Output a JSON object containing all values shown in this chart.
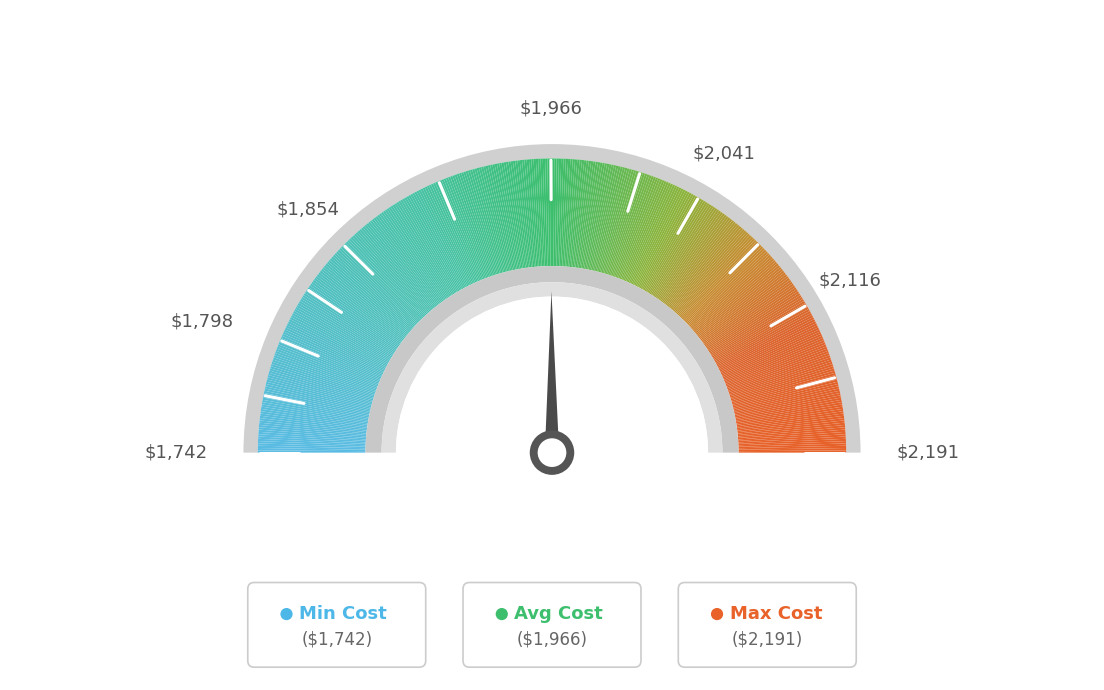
{
  "min_value": 1742,
  "max_value": 2191,
  "avg_value": 1966,
  "label_values": [
    1742,
    1798,
    1854,
    1966,
    2041,
    2116,
    2191
  ],
  "tick_values": [
    1742,
    1770,
    1798,
    1826,
    1854,
    1910,
    1966,
    2010,
    2041,
    2078,
    2116,
    2154,
    2191
  ],
  "min_label": "Min Cost",
  "avg_label": "Avg Cost",
  "max_label": "Max Cost",
  "min_display": "($1,742)",
  "avg_display": "($1,966)",
  "max_display": "($2,191)",
  "min_color": "#4db8e8",
  "avg_color": "#3dbf6e",
  "max_color": "#e8622a",
  "background_color": "#ffffff",
  "needle_color": "#4a4a4a",
  "label_fontsize": 13,
  "legend_fontsize": 13,
  "legend_sub_fontsize": 12,
  "color_stops": [
    [
      0.0,
      [
        91,
        188,
        228
      ]
    ],
    [
      0.35,
      [
        72,
        195,
        164
      ]
    ],
    [
      0.5,
      [
        61,
        191,
        110
      ]
    ],
    [
      0.65,
      [
        140,
        180,
        60
      ]
    ],
    [
      0.75,
      [
        200,
        140,
        50
      ]
    ],
    [
      0.85,
      [
        220,
        100,
        45
      ]
    ],
    [
      1.0,
      [
        232,
        98,
        42
      ]
    ]
  ]
}
